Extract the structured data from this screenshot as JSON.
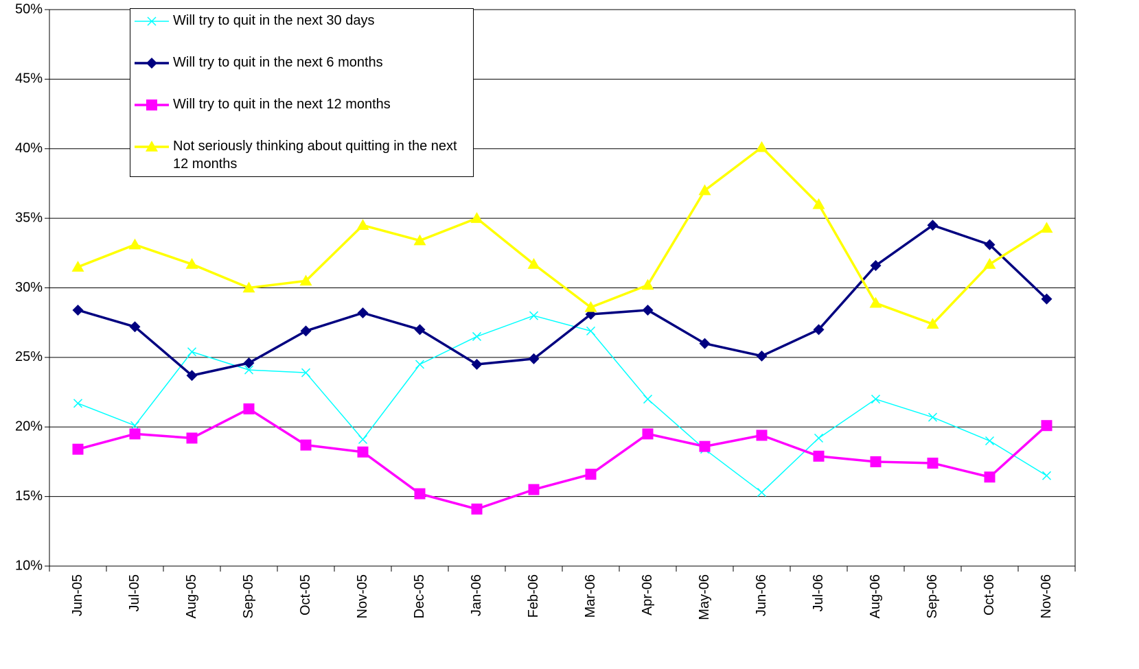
{
  "chart_data": {
    "type": "line",
    "categories": [
      "Jun-05",
      "Jul-05",
      "Aug-05",
      "Sep-05",
      "Oct-05",
      "Nov-05",
      "Dec-05",
      "Jan-06",
      "Feb-06",
      "Mar-06",
      "Apr-06",
      "May-06",
      "Jun-06",
      "Jul-06",
      "Aug-06",
      "Sep-06",
      "Oct-06",
      "Nov-06"
    ],
    "series": [
      {
        "name": "Will try to quit in the next 30 days",
        "color": "#00ffff",
        "marker": "x",
        "values": [
          21.7,
          20.1,
          25.4,
          24.1,
          23.9,
          19.1,
          24.5,
          26.5,
          28.0,
          26.9,
          22.0,
          18.4,
          15.3,
          19.2,
          22.0,
          20.7,
          19.0,
          16.5
        ]
      },
      {
        "name": "Will try to quit in the next 6 months",
        "color": "#000080",
        "marker": "diamond",
        "values": [
          28.4,
          27.2,
          23.7,
          24.6,
          26.9,
          28.2,
          27.0,
          24.5,
          24.9,
          28.1,
          28.4,
          26.0,
          25.1,
          27.0,
          31.6,
          34.5,
          33.1,
          29.2
        ]
      },
      {
        "name": "Will try to quit in the next 12 months",
        "color": "#ff00ff",
        "marker": "square",
        "values": [
          18.4,
          19.5,
          19.2,
          21.3,
          18.7,
          18.2,
          15.2,
          14.1,
          15.5,
          16.6,
          19.5,
          18.6,
          19.4,
          17.9,
          17.5,
          17.4,
          16.4,
          20.1
        ]
      },
      {
        "name": "Not seriously thinking about quitting in the next 12 months",
        "color": "#ffff00",
        "marker": "triangle",
        "values": [
          31.5,
          33.1,
          31.7,
          30.0,
          30.5,
          34.5,
          33.4,
          35.0,
          31.7,
          28.6,
          30.2,
          37.0,
          40.1,
          36.0,
          28.9,
          27.4,
          31.7,
          34.3
        ]
      }
    ],
    "ylim": [
      10,
      50
    ],
    "yticks": [
      {
        "value": 10,
        "label": "10%"
      },
      {
        "value": 15,
        "label": "15%"
      },
      {
        "value": 20,
        "label": "20%"
      },
      {
        "value": 25,
        "label": "25%"
      },
      {
        "value": 30,
        "label": "30%"
      },
      {
        "value": 35,
        "label": "35%"
      },
      {
        "value": 40,
        "label": "40%"
      },
      {
        "value": 45,
        "label": "45%"
      },
      {
        "value": 50,
        "label": "50%"
      }
    ],
    "grid": true,
    "legend": "top-left"
  }
}
